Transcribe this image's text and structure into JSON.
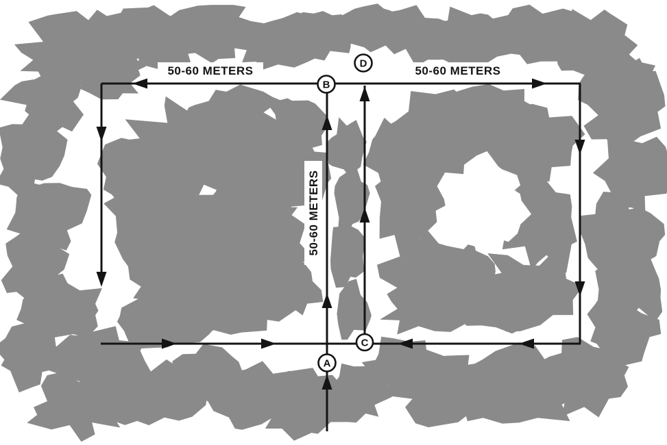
{
  "figure": {
    "kind": "box-search-route-sketch",
    "background": "#ffffff",
    "vegetation_color": "#8a8a8a",
    "line_color": "#141414",
    "waypoint_fill": "#ffffff"
  },
  "waypoints": [
    {
      "label": "A"
    },
    {
      "label": "B"
    },
    {
      "label": "C"
    },
    {
      "label": "D"
    }
  ],
  "distance_labels": {
    "top_left": "50-60 METERS",
    "top_right": "50-60 METERS",
    "center_vertical": "50-60 METERS"
  }
}
